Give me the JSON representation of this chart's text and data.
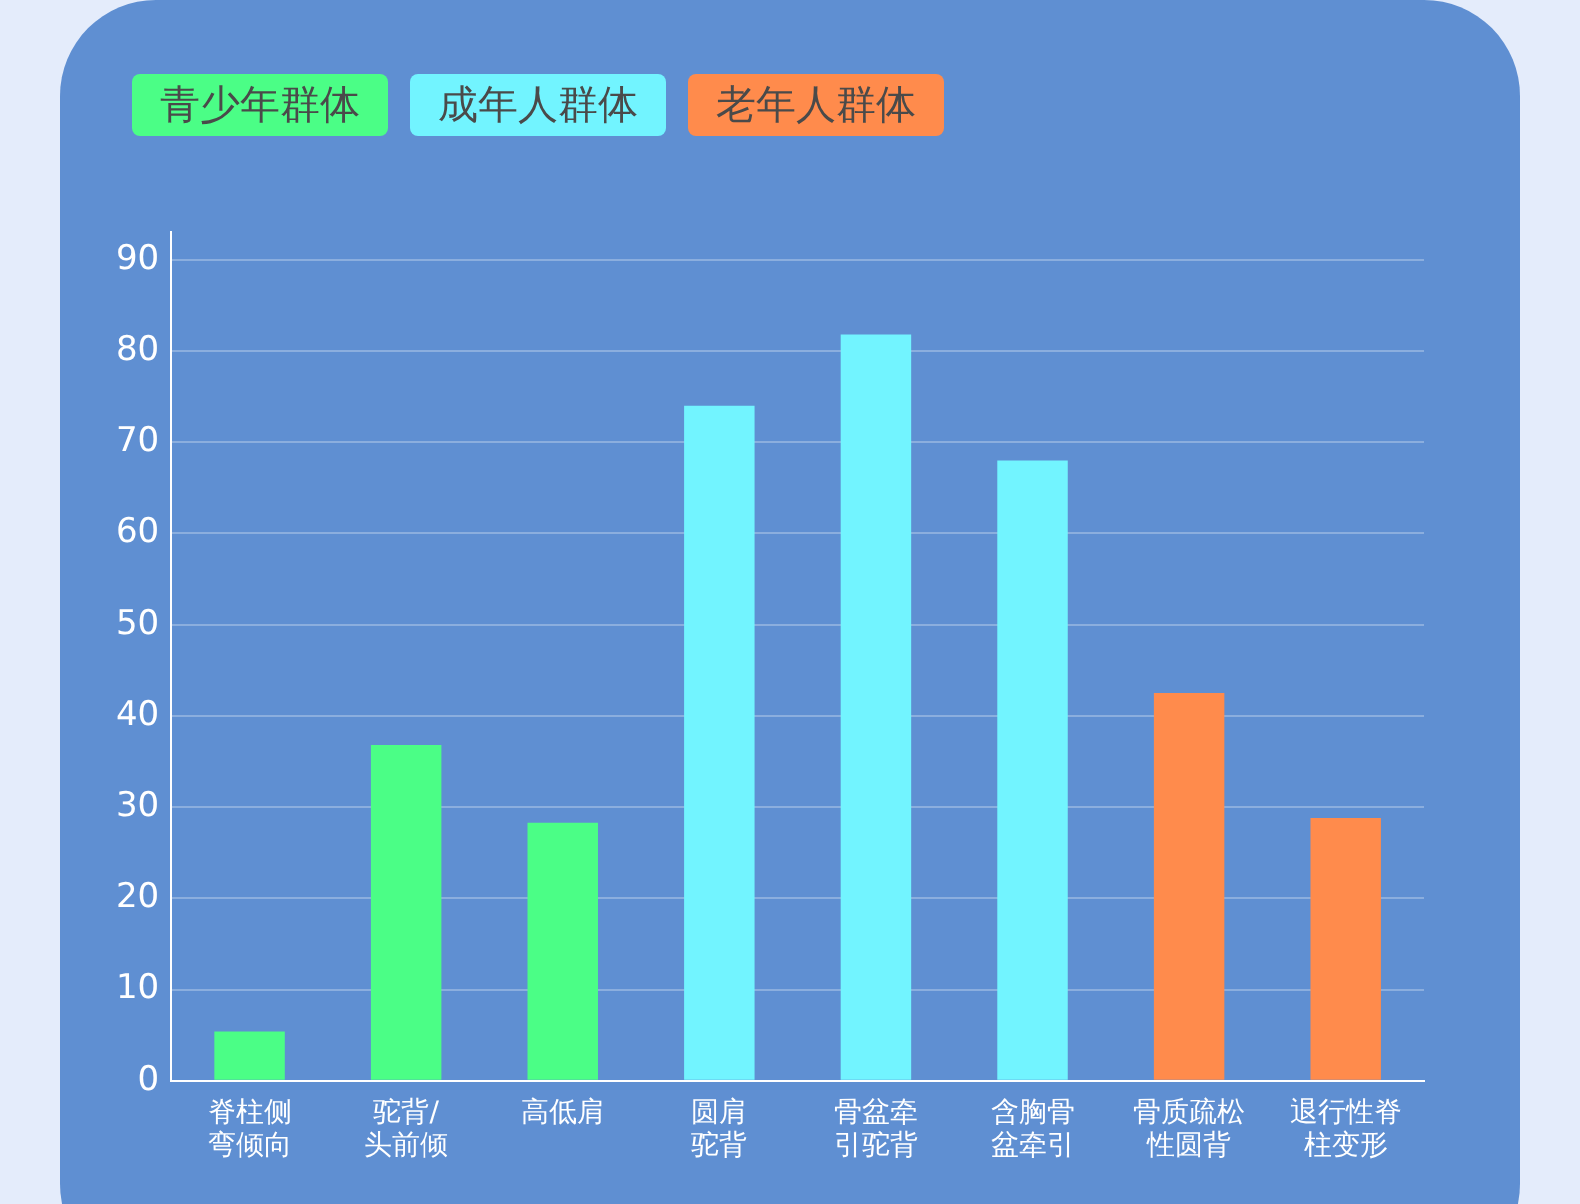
{
  "chart_data": {
    "type": "bar",
    "stacked": true,
    "categories": [
      "脊柱侧弯倾向",
      "驼背/头前倾",
      "高低肩",
      "圆肩驼背",
      "骨盆牵引驼背",
      "含胸骨盆牵引",
      "骨质疏松性圆背",
      "退行性脊柱变形"
    ],
    "series": [
      {
        "name": "青少年群体",
        "color": "#4bfe86",
        "values": [
          5.4,
          36.8,
          28.3,
          null,
          null,
          null,
          null,
          null
        ]
      },
      {
        "name": "成年人群体",
        "color": "#72f4ff",
        "values": [
          null,
          null,
          null,
          74,
          81.8,
          68,
          null,
          null
        ]
      },
      {
        "name": "老年人群体",
        "color": "#ff8b4c",
        "values": [
          null,
          null,
          null,
          null,
          null,
          null,
          42.5,
          28.8
        ]
      }
    ],
    "ylim": [
      0,
      93
    ],
    "yticks": [
      0,
      10,
      20,
      30,
      40,
      50,
      60,
      70,
      80,
      90
    ],
    "grid": "y",
    "legend": "top left"
  }
}
